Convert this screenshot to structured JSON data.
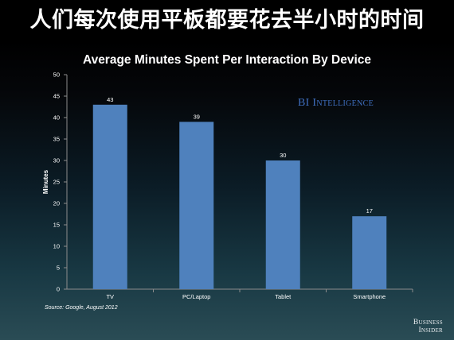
{
  "headline": "人们每次使用平板都要花去半小时的时间",
  "watermark": "BI Intelligence",
  "source": "Source: Google, August 2012",
  "brand": {
    "line1": "Business",
    "line2": "Insider"
  },
  "colors": {
    "bar": "#4f81bd",
    "axis": "#8c8c8c",
    "watermark": "#3f6fc0"
  },
  "chart_data": {
    "type": "bar",
    "title": "Average Minutes Spent Per Interaction By Device",
    "xlabel": "",
    "ylabel": "Minutes",
    "categories": [
      "TV",
      "PC/Laptop",
      "Tablet",
      "Smartphone"
    ],
    "values": [
      43,
      39,
      30,
      17
    ],
    "ylim": [
      0,
      50
    ],
    "yticks": [
      0,
      5,
      10,
      15,
      20,
      25,
      30,
      35,
      40,
      45,
      50
    ],
    "grid": false,
    "data_labels": true
  }
}
